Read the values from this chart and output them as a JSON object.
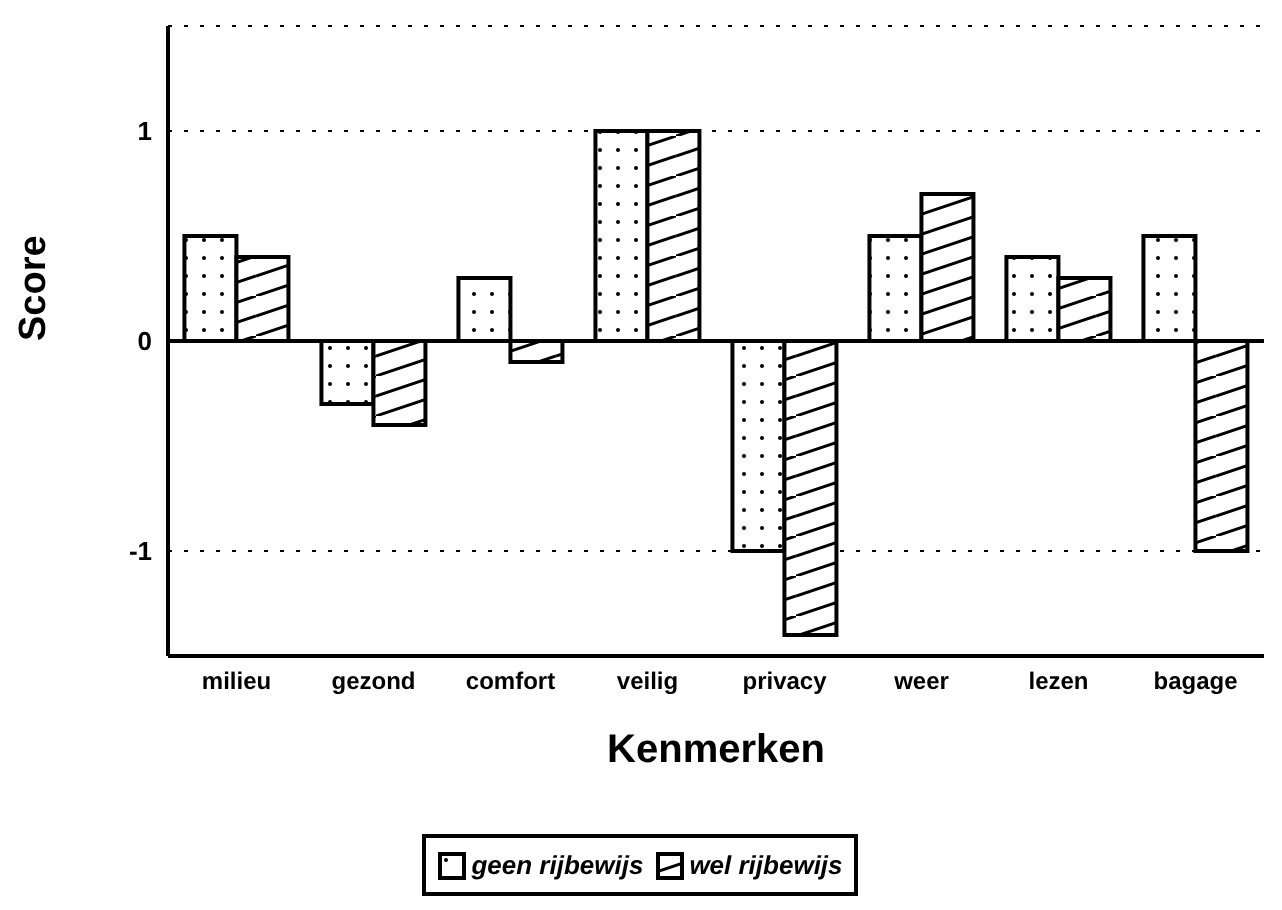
{
  "chart_data": {
    "type": "bar",
    "xlabel": "Kenmerken",
    "ylabel": "Score",
    "categories": [
      "milieu",
      "gezond",
      "comfort",
      "veilig",
      "privacy",
      "weer",
      "lezen",
      "bagage"
    ],
    "series": [
      {
        "name": "geen rijbewijs",
        "color": "#000000",
        "values": [
          0.5,
          -0.3,
          0.3,
          1,
          -1,
          0.5,
          0.4,
          0.5
        ]
      },
      {
        "name": "wel rijbewijs",
        "color": "#000000",
        "values": [
          0.4,
          -0.4,
          -0.1,
          1,
          -1.4,
          0.7,
          0.3,
          -1
        ]
      }
    ],
    "ylim": [
      -1.5,
      1.5
    ],
    "yticks": [
      -1,
      0,
      1
    ],
    "grid": "y",
    "legend": "bottom"
  }
}
